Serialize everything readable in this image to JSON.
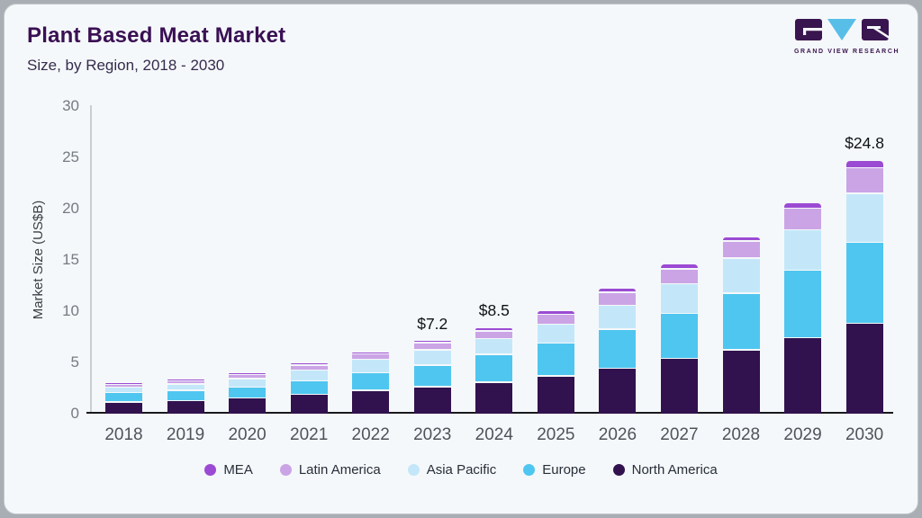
{
  "header": {
    "title": "Plant Based Meat Market",
    "subtitle": "Size, by Region, 2018 - 2030",
    "logo_text": "GRAND VIEW RESEARCH"
  },
  "colors": {
    "card_background": "#F5F8FA",
    "outer_frame": "#A9AEB4",
    "title_text": "#3A1054",
    "logo_purple": "#3A1650",
    "logo_blue": "#58BEE8",
    "axis_line": "#C9CED3",
    "baseline": "#17191D"
  },
  "chart_data": {
    "type": "bar",
    "stacked": true,
    "title": "Plant Based Meat Market",
    "subtitle": "Size, by Region, 2018 - 2030",
    "xlabel": "",
    "ylabel": "Market Size (US$B)",
    "ylim": [
      0,
      30
    ],
    "yticks": [
      0,
      5,
      10,
      15,
      20,
      25,
      30
    ],
    "grid": false,
    "legend_position": "bottom",
    "categories": [
      "2018",
      "2019",
      "2020",
      "2021",
      "2022",
      "2023",
      "2024",
      "2025",
      "2026",
      "2027",
      "2028",
      "2029",
      "2030"
    ],
    "series": [
      {
        "name": "North America",
        "color": "#31124E",
        "values": [
          1.2,
          1.35,
          1.6,
          1.95,
          2.35,
          2.7,
          3.15,
          3.75,
          4.5,
          5.45,
          6.3,
          7.5,
          8.9
        ]
      },
      {
        "name": "Europe",
        "color": "#4FC6F0",
        "values": [
          0.95,
          1.0,
          1.05,
          1.3,
          1.7,
          2.1,
          2.7,
          3.2,
          3.8,
          4.4,
          5.5,
          6.55,
          7.85
        ]
      },
      {
        "name": "Asia Pacific",
        "color": "#C3E7F9",
        "values": [
          0.5,
          0.6,
          0.85,
          1.05,
          1.3,
          1.5,
          1.55,
          1.85,
          2.35,
          2.9,
          3.45,
          3.95,
          4.8
        ]
      },
      {
        "name": "Latin America",
        "color": "#CBA4E6",
        "values": [
          0.25,
          0.3,
          0.4,
          0.5,
          0.55,
          0.7,
          0.75,
          0.95,
          1.25,
          1.45,
          1.65,
          2.1,
          2.5
        ]
      },
      {
        "name": "MEA",
        "color": "#9B4BD3",
        "values": [
          0.05,
          0.1,
          0.1,
          0.15,
          0.1,
          0.2,
          0.35,
          0.4,
          0.4,
          0.45,
          0.45,
          0.55,
          0.75
        ]
      }
    ],
    "totals_shown": {
      "2023": "$7.2",
      "2024": "$8.5",
      "2030": "$24.8"
    },
    "legend_order": [
      "MEA",
      "Latin America",
      "Asia Pacific",
      "Europe",
      "North America"
    ]
  }
}
